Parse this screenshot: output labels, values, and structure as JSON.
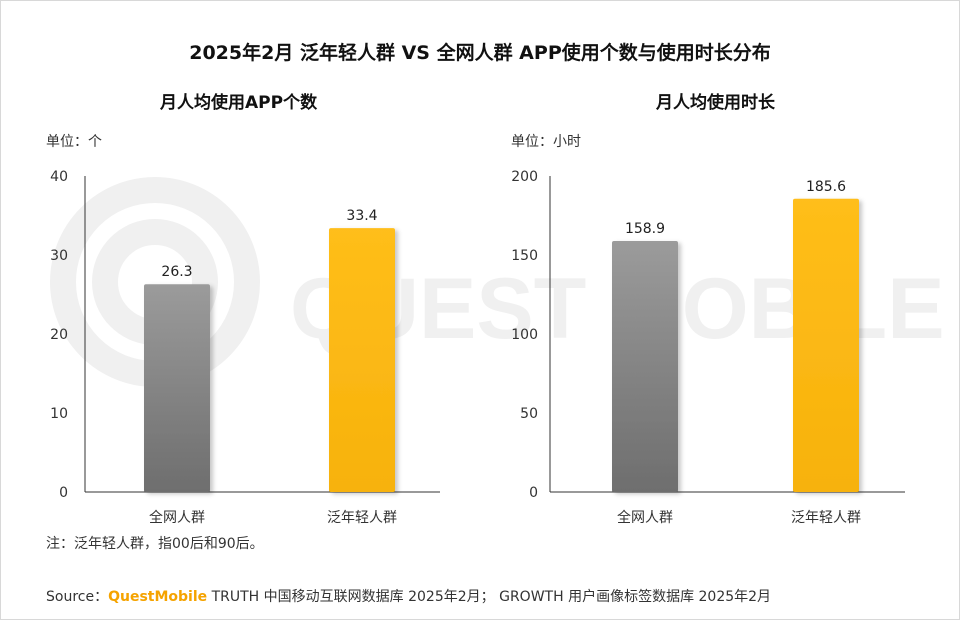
{
  "title": "2025年2月 泛年轻人群 VS 全网人群 APP使用个数与使用时长分布",
  "note": "注：泛年轻人群，指00后和90后。",
  "source": {
    "prefix": "Source：",
    "brand": "QuestMobile",
    "text": " TRUTH 中国移动互联网数据库 2025年2月； GROWTH 用户画像标签数据库 2025年2月"
  },
  "colors": {
    "gray": "#8a8a8a",
    "yellow": "#fbb817",
    "watermark": "#f2f2f2"
  },
  "chart_data": [
    {
      "type": "bar",
      "title": "月人均使用APP个数",
      "unit_label": "单位：个",
      "categories": [
        "全网人群",
        "泛年轻人群"
      ],
      "values": [
        26.3,
        33.4
      ],
      "value_labels": [
        "26.3",
        "33.4"
      ],
      "ylim": [
        0,
        40
      ],
      "yticks": [
        0,
        10,
        20,
        30,
        40
      ],
      "bar_colors": [
        "gray",
        "yellow"
      ]
    },
    {
      "type": "bar",
      "title": "月人均使用时长",
      "unit_label": "单位：小时",
      "categories": [
        "全网人群",
        "泛年轻人群"
      ],
      "values": [
        158.9,
        185.6
      ],
      "value_labels": [
        "158.9",
        "185.6"
      ],
      "ylim": [
        0,
        200
      ],
      "yticks": [
        0,
        50,
        100,
        150,
        200
      ],
      "bar_colors": [
        "gray",
        "yellow"
      ]
    }
  ]
}
